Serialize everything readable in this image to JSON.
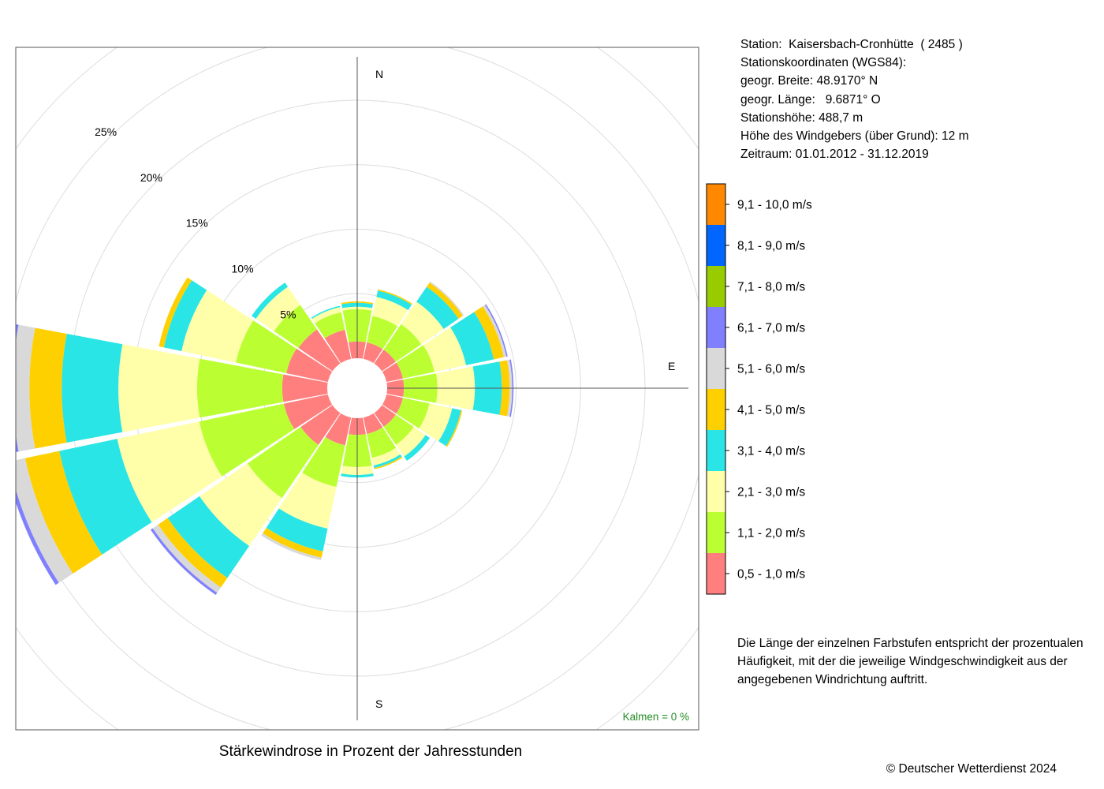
{
  "info": {
    "station": "Station:  Kaisersbach-Cronhütte  ( 2485 )",
    "coords": "Stationskoordinaten (WGS84):",
    "lat": "geogr. Breite: 48.9170° N",
    "lon": "geogr. Länge:   9.6871° O",
    "elevation": "Stationshöhe: 488,7 m",
    "sensor_height": "Höhe des Windgebers (über Grund): 12 m",
    "period": "Zeitraum: 01.01.2012 - 31.12.2019"
  },
  "note": "Die Länge der einzelnen Farbstufen entspricht der prozentualen Häufigkeit, mit der die jeweilige Windgeschwindigkeit aus der angegebenen Windrichtung auftritt.",
  "copyright": "© Deutscher Wetterdienst  2024",
  "chart_data": {
    "type": "windrose",
    "title": "Stärkewindrose in Prozent der Jahresstunden",
    "calm_label": "Kalmen  =  0 %",
    "calm_color": "#228B22",
    "directions": [
      "N",
      "NNE",
      "NE",
      "ENE",
      "E",
      "ESE",
      "SE",
      "SSE",
      "S",
      "SSW",
      "SW",
      "WSW",
      "W",
      "WNW",
      "NW",
      "NNW"
    ],
    "compass_labels": {
      "N": "N",
      "E": "E",
      "S": "S"
    },
    "radial_ticks": [
      5,
      10,
      15,
      20,
      25
    ],
    "radial_tick_labels": [
      "5%",
      "10%",
      "15%",
      "20%",
      "25%"
    ],
    "speed_bins": [
      {
        "label": "0,5 - 1,0 m/s",
        "color": "#FF7F7F"
      },
      {
        "label": "1,1 - 2,0 m/s",
        "color": "#BBFF33"
      },
      {
        "label": "2,1 - 3,0 m/s",
        "color": "#FFFFAA"
      },
      {
        "label": "3,1 - 4,0 m/s",
        "color": "#2AE5E5"
      },
      {
        "label": "4,1 - 5,0 m/s",
        "color": "#FFD000"
      },
      {
        "label": "5,1 - 6,0 m/s",
        "color": "#D9D9D9"
      },
      {
        "label": "6,1 - 7,0 m/s",
        "color": "#8080FF"
      },
      {
        "label": "7,1 - 8,0 m/s",
        "color": "#99CC00"
      },
      {
        "label": "8,1 - 9,0 m/s",
        "color": "#0066FF"
      },
      {
        "label": "9,1 - 10,0 m/s",
        "color": "#FF8800"
      }
    ],
    "cumulative_percent": [
      [
        1.3,
        3.8,
        4.0,
        4.3,
        4.4,
        4.4,
        4.4,
        4.4,
        4.4,
        4.4
      ],
      [
        1.3,
        3.4,
        4.9,
        5.4,
        5.5,
        5.5,
        5.5,
        5.5,
        5.5,
        5.5
      ],
      [
        1.3,
        3.7,
        5.8,
        7.2,
        7.6,
        7.7,
        7.7,
        7.7,
        7.7,
        7.7
      ],
      [
        1.3,
        3.8,
        6.3,
        8.5,
        9.3,
        9.5,
        9.6,
        9.6,
        9.6,
        9.6
      ],
      [
        1.3,
        3.9,
        6.8,
        8.9,
        9.5,
        9.7,
        9.8,
        9.8,
        9.8,
        9.8
      ],
      [
        1.3,
        3.4,
        5.2,
        5.9,
        6.0,
        6.0,
        6.0,
        6.0,
        6.0,
        6.0
      ],
      [
        1.3,
        3.0,
        4.1,
        4.5,
        4.5,
        4.5,
        4.5,
        4.5,
        4.5,
        4.5
      ],
      [
        1.3,
        3.2,
        3.8,
        4.0,
        4.1,
        4.1,
        4.1,
        4.1,
        4.1,
        4.1
      ],
      [
        1.3,
        3.8,
        4.4,
        4.6,
        4.6,
        4.6,
        4.6,
        4.6,
        4.6,
        4.6
      ],
      [
        2.2,
        5.5,
        8.8,
        10.6,
        11.1,
        11.3,
        11.3,
        11.3,
        11.3,
        11.3
      ],
      [
        3.0,
        8.0,
        12.5,
        15.5,
        16.4,
        16.9,
        17.1,
        17.1,
        17.1,
        17.1
      ],
      [
        3.5,
        10.2,
        16.7,
        21.3,
        24.0,
        25.3,
        25.6,
        25.6,
        25.6,
        25.6
      ],
      [
        3.5,
        10.1,
        16.2,
        20.6,
        23.1,
        24.4,
        24.7,
        24.7,
        24.7,
        24.7
      ],
      [
        3.3,
        7.3,
        11.6,
        13.0,
        13.4,
        13.4,
        13.4,
        13.4,
        13.4,
        13.4
      ],
      [
        3.2,
        5.5,
        7.2,
        7.6,
        7.6,
        7.6,
        7.6,
        7.6,
        7.6,
        7.6
      ],
      [
        2.3,
        3.7,
        4.1,
        4.2,
        4.2,
        4.2,
        4.2,
        4.2,
        4.2,
        4.2
      ]
    ]
  }
}
